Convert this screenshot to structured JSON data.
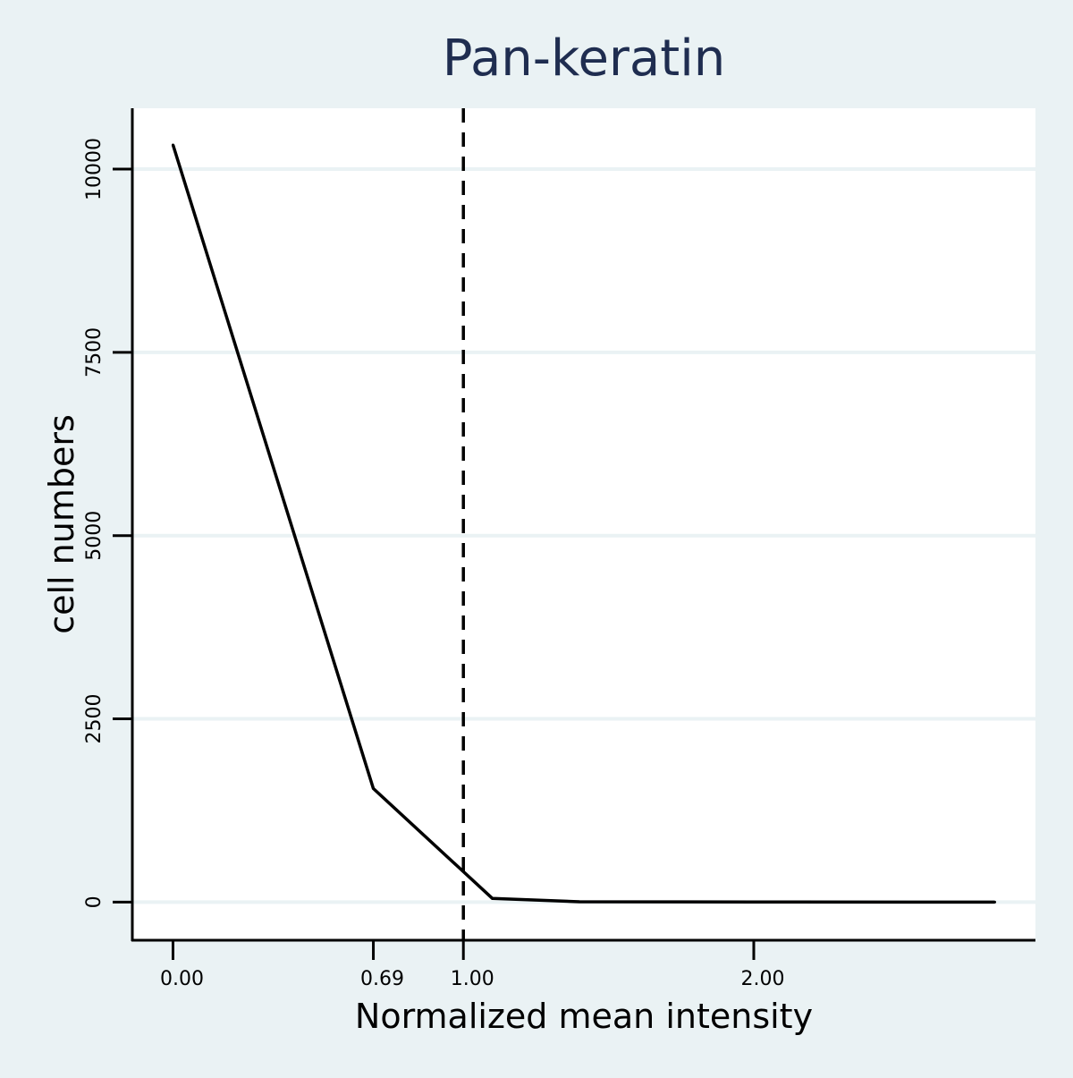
{
  "chart_data": {
    "type": "line",
    "title": "Pan-keratin",
    "xlabel": "Normalized mean intensity",
    "ylabel": "cell numbers",
    "x_ticks": [
      {
        "value": 0.0,
        "label": "0.00"
      },
      {
        "value": 0.69,
        "label": "0.69"
      },
      {
        "value": 1.0,
        "label": "1.00"
      },
      {
        "value": 2.0,
        "label": "2.00"
      }
    ],
    "y_ticks": [
      {
        "value": 0,
        "label": "0"
      },
      {
        "value": 2500,
        "label": "2500"
      },
      {
        "value": 5000,
        "label": "5000"
      },
      {
        "value": 7500,
        "label": "7500"
      },
      {
        "value": 10000,
        "label": "10000"
      }
    ],
    "xlim": [
      -0.14,
      2.97
    ],
    "ylim": [
      -520,
      10830
    ],
    "series": [
      {
        "x": [
          0.0,
          0.69,
          1.1,
          1.4,
          2.0,
          2.83
        ],
        "values": [
          10330,
          1550,
          50,
          5,
          2,
          0
        ]
      }
    ],
    "reference_line": {
      "x": 1.0,
      "style": "dashed"
    },
    "grid": {
      "horizontal": true,
      "vertical": false
    },
    "colors": {
      "background": "#eaf2f4",
      "plot_background": "#ffffff",
      "gridline": "#eaf2f4",
      "line": "#000000",
      "title": "#1f2d50"
    }
  }
}
